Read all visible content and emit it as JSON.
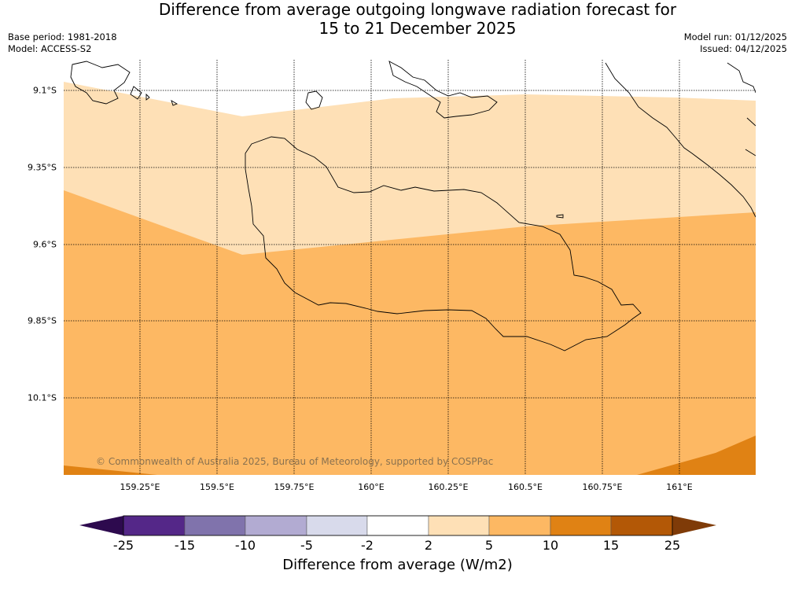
{
  "title": {
    "line1": "Difference from average outgoing longwave radiation forecast for",
    "line2": "15 to 21 December 2025"
  },
  "meta": {
    "base_period": "Base period: 1981-2018",
    "model": "Model: ACCESS-S2",
    "model_run": "Model run: 01/12/2025",
    "issued": "Issued: 04/12/2025"
  },
  "map": {
    "lon_ticks": [
      "159.25°E",
      "159.5°E",
      "159.75°E",
      "160°E",
      "160.25°E",
      "160.5°E",
      "160.75°E",
      "161°E"
    ],
    "lat_ticks": [
      "9.1°S",
      "9.35°S",
      "9.6°S",
      "9.85°S",
      "10.1°S"
    ],
    "credit": "© Commonwealth of Australia 2025, Bureau of Meteorology, supported by COSPPac"
  },
  "colorbar": {
    "ticks": [
      "-25",
      "-15",
      "-10",
      "-5",
      "-2",
      "2",
      "5",
      "10",
      "15",
      "25"
    ],
    "label": "Difference from average (W/m2)",
    "colors": [
      "#2d0a4e",
      "#542788",
      "#8073ac",
      "#b2abd2",
      "#d8daeb",
      "#ffffff",
      "#fee0b6",
      "#fdb863",
      "#e08214",
      "#b35806",
      "#7f3b08"
    ]
  }
}
